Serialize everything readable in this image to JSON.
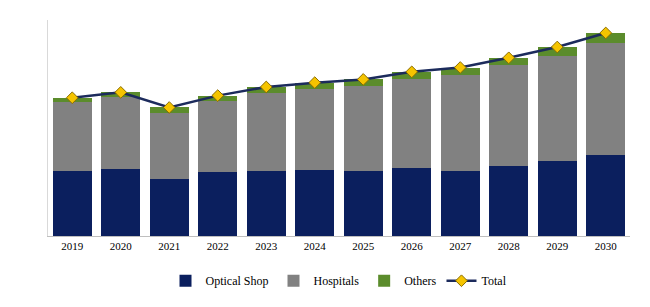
{
  "chart_data": {
    "type": "bar",
    "stacked": true,
    "categories": [
      "2019",
      "2020",
      "2021",
      "2022",
      "2023",
      "2024",
      "2025",
      "2026",
      "2027",
      "2028",
      "2029",
      "2030"
    ],
    "series": [
      {
        "name": "Optical Shop",
        "color": "#0b1f5e",
        "values": [
          60,
          62,
          53,
          59,
          60,
          61,
          60,
          63,
          60,
          65,
          69,
          75
        ]
      },
      {
        "name": "Hospitals",
        "color": "#818181",
        "values": [
          64,
          67,
          61,
          66,
          72,
          75,
          79,
          82,
          89,
          93,
          98,
          104
        ]
      },
      {
        "name": "Others",
        "color": "#5b8c2c",
        "values": [
          4,
          4,
          5,
          5,
          6,
          6,
          6,
          7,
          7,
          7,
          8,
          9
        ]
      },
      {
        "name": "Total",
        "type": "line",
        "color": "#1c2b5c",
        "marker": "diamond",
        "values": [
          128,
          133,
          119,
          130,
          138,
          142,
          145,
          152,
          156,
          165,
          175,
          188
        ]
      }
    ],
    "ylim": [
      0,
      200
    ],
    "yticks": [
      0,
      200
    ],
    "grid": false,
    "tick_labels": "x",
    "legend": "bottom"
  }
}
